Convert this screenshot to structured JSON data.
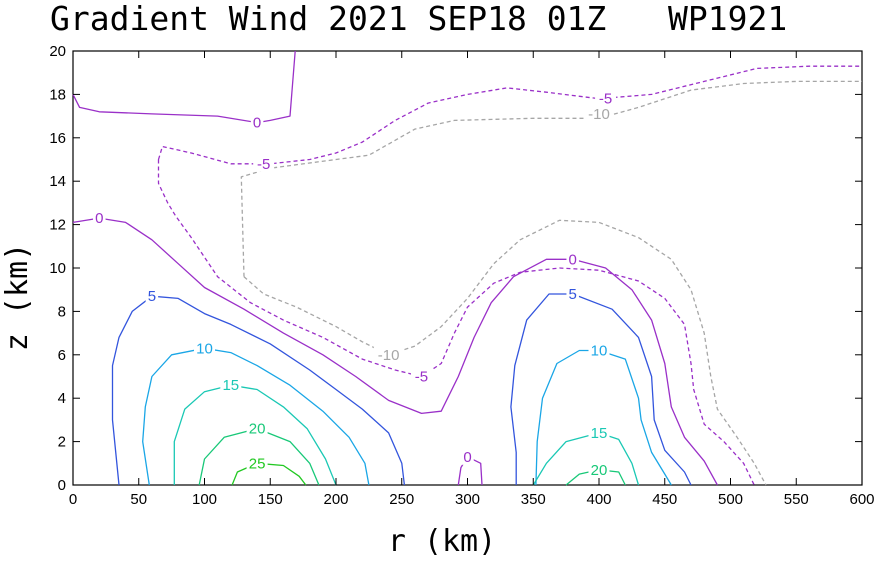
{
  "chart_data": {
    "type": "contour",
    "title": "Gradient Wind 2021 SEP18 01Z",
    "title_id": "WP1921",
    "xlabel": "r (km)",
    "ylabel": "z (km)",
    "xlim": [
      0,
      600
    ],
    "ylim": [
      0,
      20
    ],
    "xticks": [
      0,
      50,
      100,
      150,
      200,
      250,
      300,
      350,
      400,
      450,
      500,
      550,
      600
    ],
    "yticks": [
      0,
      2,
      4,
      6,
      8,
      10,
      12,
      14,
      16,
      18,
      20
    ],
    "contours": [
      {
        "level": -10,
        "label": "-10",
        "color": "#a6a6a6",
        "dashed": true,
        "labels": [
          [
            400,
            17.1
          ],
          [
            240,
            6.0
          ]
        ],
        "segments": [
          [
            [
              130,
              9.6
            ],
            [
              128,
              14.2
            ],
            [
              150,
              14.6
            ],
            [
              200,
              15.0
            ],
            [
              225,
              15.2
            ],
            [
              260,
              16.4
            ],
            [
              290,
              16.8
            ],
            [
              350,
              16.9
            ],
            [
              400,
              16.9
            ],
            [
              430,
              17.4
            ],
            [
              470,
              18.2
            ],
            [
              510,
              18.5
            ],
            [
              550,
              18.6
            ],
            [
              600,
              18.6
            ]
          ],
          [
            [
              130,
              9.6
            ],
            [
              145,
              8.8
            ],
            [
              170,
              8.2
            ],
            [
              200,
              7.3
            ],
            [
              220,
              6.6
            ],
            [
              240,
              6.0
            ],
            [
              260,
              6.4
            ],
            [
              280,
              7.3
            ],
            [
              300,
              8.6
            ],
            [
              320,
              10.2
            ],
            [
              340,
              11.3
            ],
            [
              370,
              12.2
            ],
            [
              400,
              12.1
            ],
            [
              430,
              11.4
            ],
            [
              455,
              10.4
            ],
            [
              470,
              9.0
            ],
            [
              480,
              7.0
            ],
            [
              485,
              5.0
            ],
            [
              490,
              3.5
            ],
            [
              505,
              2.2
            ],
            [
              518,
              1.0
            ],
            [
              527,
              0
            ]
          ]
        ]
      },
      {
        "level": -5,
        "label": "-5",
        "color": "#9a30c8",
        "dashed": true,
        "labels": [
          [
            405,
            17.8
          ],
          [
            145,
            14.8
          ],
          [
            265,
            5.0
          ]
        ],
        "segments": [
          [
            [
              65,
              15.0
            ],
            [
              68,
              15.6
            ],
            [
              90,
              15.3
            ],
            [
              120,
              14.8
            ],
            [
              150,
              14.8
            ],
            [
              180,
              15.0
            ],
            [
              200,
              15.3
            ],
            [
              220,
              15.8
            ],
            [
              245,
              16.8
            ],
            [
              270,
              17.6
            ],
            [
              300,
              18.0
            ],
            [
              330,
              18.3
            ],
            [
              360,
              18.1
            ],
            [
              400,
              17.8
            ],
            [
              440,
              18.0
            ],
            [
              480,
              18.6
            ],
            [
              520,
              19.2
            ],
            [
              560,
              19.3
            ],
            [
              600,
              19.3
            ]
          ],
          [
            [
              65,
              15.0
            ],
            [
              65,
              13.9
            ],
            [
              72,
              13.0
            ],
            [
              78,
              12.4
            ],
            [
              90,
              11.4
            ],
            [
              110,
              9.6
            ],
            [
              135,
              8.4
            ],
            [
              160,
              7.6
            ],
            [
              190,
              6.8
            ],
            [
              220,
              5.8
            ],
            [
              245,
              5.3
            ],
            [
              265,
              5.0
            ],
            [
              280,
              5.6
            ],
            [
              290,
              7.0
            ],
            [
              300,
              8.2
            ],
            [
              320,
              9.3
            ],
            [
              340,
              9.8
            ],
            [
              370,
              10.0
            ],
            [
              400,
              9.9
            ],
            [
              430,
              9.4
            ],
            [
              450,
              8.6
            ],
            [
              465,
              7.4
            ],
            [
              470,
              5.6
            ],
            [
              472,
              4.4
            ],
            [
              480,
              2.8
            ],
            [
              495,
              2.0
            ],
            [
              510,
              1.0
            ],
            [
              518,
              0
            ]
          ]
        ]
      },
      {
        "level": 0,
        "label": "0",
        "color": "#9a30c8",
        "dashed": false,
        "labels": [
          [
            140,
            16.7
          ],
          [
            20,
            12.3
          ],
          [
            380,
            10.4
          ],
          [
            300,
            1.3
          ]
        ],
        "segments": [
          [
            [
              169,
              20.0
            ],
            [
              167,
              18.5
            ],
            [
              165,
              17.0
            ],
            [
              150,
              16.8
            ],
            [
              140,
              16.7
            ],
            [
              110,
              17.0
            ],
            [
              60,
              17.1
            ],
            [
              20,
              17.2
            ],
            [
              5,
              17.4
            ],
            [
              0,
              18.0
            ]
          ],
          [
            [
              0,
              12.1
            ],
            [
              20,
              12.3
            ],
            [
              40,
              12.1
            ],
            [
              60,
              11.3
            ],
            [
              80,
              10.2
            ],
            [
              100,
              9.1
            ],
            [
              130,
              8.1
            ],
            [
              160,
              7.0
            ],
            [
              190,
              6.0
            ],
            [
              215,
              5.0
            ],
            [
              240,
              3.9
            ],
            [
              265,
              3.3
            ],
            [
              280,
              3.4
            ],
            [
              293,
              5.0
            ],
            [
              305,
              6.8
            ],
            [
              318,
              8.4
            ],
            [
              335,
              9.6
            ],
            [
              360,
              10.4
            ],
            [
              380,
              10.4
            ],
            [
              405,
              10.0
            ],
            [
              425,
              9.0
            ],
            [
              440,
              7.6
            ],
            [
              450,
              5.6
            ],
            [
              455,
              3.6
            ],
            [
              465,
              2.2
            ],
            [
              480,
              1.1
            ],
            [
              490,
              0
            ]
          ],
          [
            [
              293,
              0
            ],
            [
              295,
              0.8
            ],
            [
              300,
              1.3
            ],
            [
              310,
              1.0
            ],
            [
              311,
              0
            ]
          ]
        ]
      },
      {
        "level": 5,
        "label": "5",
        "color": "#3355dd",
        "dashed": false,
        "labels": [
          [
            60,
            8.7
          ],
          [
            380,
            8.8
          ]
        ],
        "segments": [
          [
            [
              35,
              0
            ],
            [
              30,
              3.0
            ],
            [
              30,
              5.5
            ],
            [
              35,
              6.8
            ],
            [
              45,
              8.0
            ],
            [
              60,
              8.7
            ],
            [
              80,
              8.6
            ],
            [
              100,
              7.9
            ],
            [
              120,
              7.4
            ],
            [
              150,
              6.5
            ],
            [
              180,
              5.3
            ],
            [
              200,
              4.4
            ],
            [
              220,
              3.5
            ],
            [
              240,
              2.4
            ],
            [
              250,
              1.0
            ],
            [
              252,
              0
            ]
          ],
          [
            [
              337,
              0
            ],
            [
              337,
              1.5
            ],
            [
              333,
              3.6
            ],
            [
              336,
              5.5
            ],
            [
              345,
              7.6
            ],
            [
              362,
              8.8
            ],
            [
              380,
              8.8
            ],
            [
              410,
              8.1
            ],
            [
              430,
              6.8
            ],
            [
              440,
              5.0
            ],
            [
              442,
              3.0
            ],
            [
              450,
              1.6
            ],
            [
              465,
              0.6
            ],
            [
              470,
              0
            ]
          ]
        ]
      },
      {
        "level": 10,
        "label": "10",
        "color": "#1aa6e6",
        "dashed": false,
        "labels": [
          [
            100,
            6.3
          ],
          [
            400,
            6.2
          ]
        ],
        "segments": [
          [
            [
              58,
              0
            ],
            [
              53,
              2.0
            ],
            [
              55,
              3.6
            ],
            [
              60,
              5.0
            ],
            [
              75,
              6.0
            ],
            [
              100,
              6.3
            ],
            [
              120,
              6.1
            ],
            [
              140,
              5.5
            ],
            [
              165,
              4.6
            ],
            [
              190,
              3.4
            ],
            [
              210,
              2.2
            ],
            [
              222,
              1.0
            ],
            [
              225,
              0
            ]
          ],
          [
            [
              352,
              0
            ],
            [
              353,
              2.0
            ],
            [
              357,
              4.0
            ],
            [
              368,
              5.6
            ],
            [
              385,
              6.2
            ],
            [
              400,
              6.2
            ],
            [
              420,
              5.8
            ],
            [
              430,
              4.0
            ],
            [
              432,
              3.0
            ],
            [
              440,
              1.5
            ],
            [
              450,
              0.5
            ],
            [
              455,
              0
            ]
          ]
        ]
      },
      {
        "level": 15,
        "label": "15",
        "color": "#1ac8b4",
        "dashed": false,
        "labels": [
          [
            120,
            4.6
          ],
          [
            400,
            2.4
          ]
        ],
        "segments": [
          [
            [
              77,
              0
            ],
            [
              77,
              2.0
            ],
            [
              85,
              3.5
            ],
            [
              100,
              4.3
            ],
            [
              120,
              4.6
            ],
            [
              140,
              4.4
            ],
            [
              160,
              3.6
            ],
            [
              178,
              2.6
            ],
            [
              192,
              1.2
            ],
            [
              200,
              0
            ]
          ],
          [
            [
              350,
              0
            ],
            [
              360,
              1.0
            ],
            [
              375,
              2.0
            ],
            [
              400,
              2.4
            ],
            [
              415,
              2.1
            ],
            [
              425,
              1.0
            ],
            [
              430,
              0
            ]
          ]
        ]
      },
      {
        "level": 20,
        "label": "20",
        "color": "#18c878",
        "dashed": false,
        "labels": [
          [
            140,
            2.6
          ],
          [
            400,
            0.7
          ]
        ],
        "segments": [
          [
            [
              96,
              0
            ],
            [
              100,
              1.2
            ],
            [
              115,
              2.2
            ],
            [
              140,
              2.6
            ],
            [
              165,
              2.0
            ],
            [
              180,
              1.0
            ],
            [
              187,
              0
            ]
          ],
          [
            [
              375,
              0
            ],
            [
              385,
              0.5
            ],
            [
              400,
              0.7
            ],
            [
              415,
              0.6
            ],
            [
              420,
              0
            ]
          ]
        ]
      },
      {
        "level": 25,
        "label": "25",
        "color": "#22c822",
        "dashed": false,
        "labels": [
          [
            140,
            1.0
          ]
        ],
        "segments": [
          [
            [
              121,
              0
            ],
            [
              125,
              0.6
            ],
            [
              140,
              1.0
            ],
            [
              160,
              0.9
            ],
            [
              172,
              0.4
            ],
            [
              177,
              0
            ]
          ]
        ]
      }
    ]
  }
}
